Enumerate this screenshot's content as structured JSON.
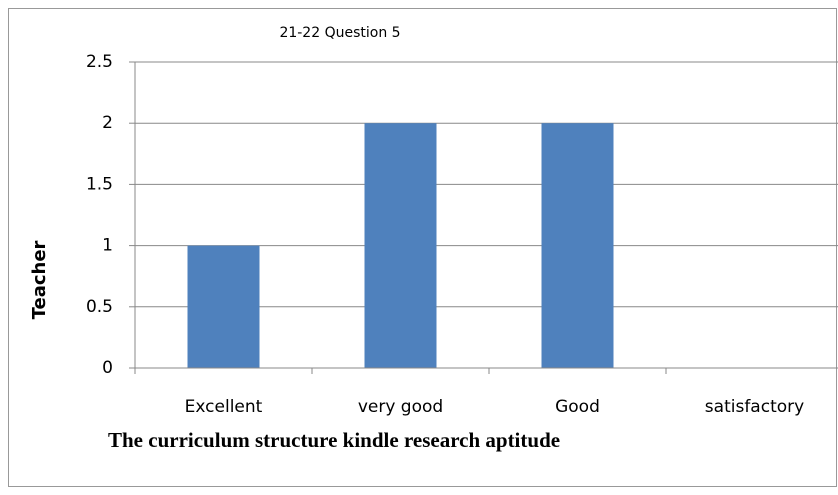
{
  "chart_data": {
    "type": "bar",
    "title": "21-22  Question  5",
    "ylabel": "Teacher",
    "xlabel": "The curriculum structure kindle research aptitude",
    "categories": [
      "Excellent",
      "very good",
      "Good",
      "satisfactory"
    ],
    "values": [
      1,
      2,
      2,
      0
    ],
    "color": "#4f81bd",
    "ylim": [
      0,
      2.5
    ],
    "yticks": [
      0,
      0.5,
      1,
      1.5,
      2,
      2.5
    ],
    "grid": true
  }
}
